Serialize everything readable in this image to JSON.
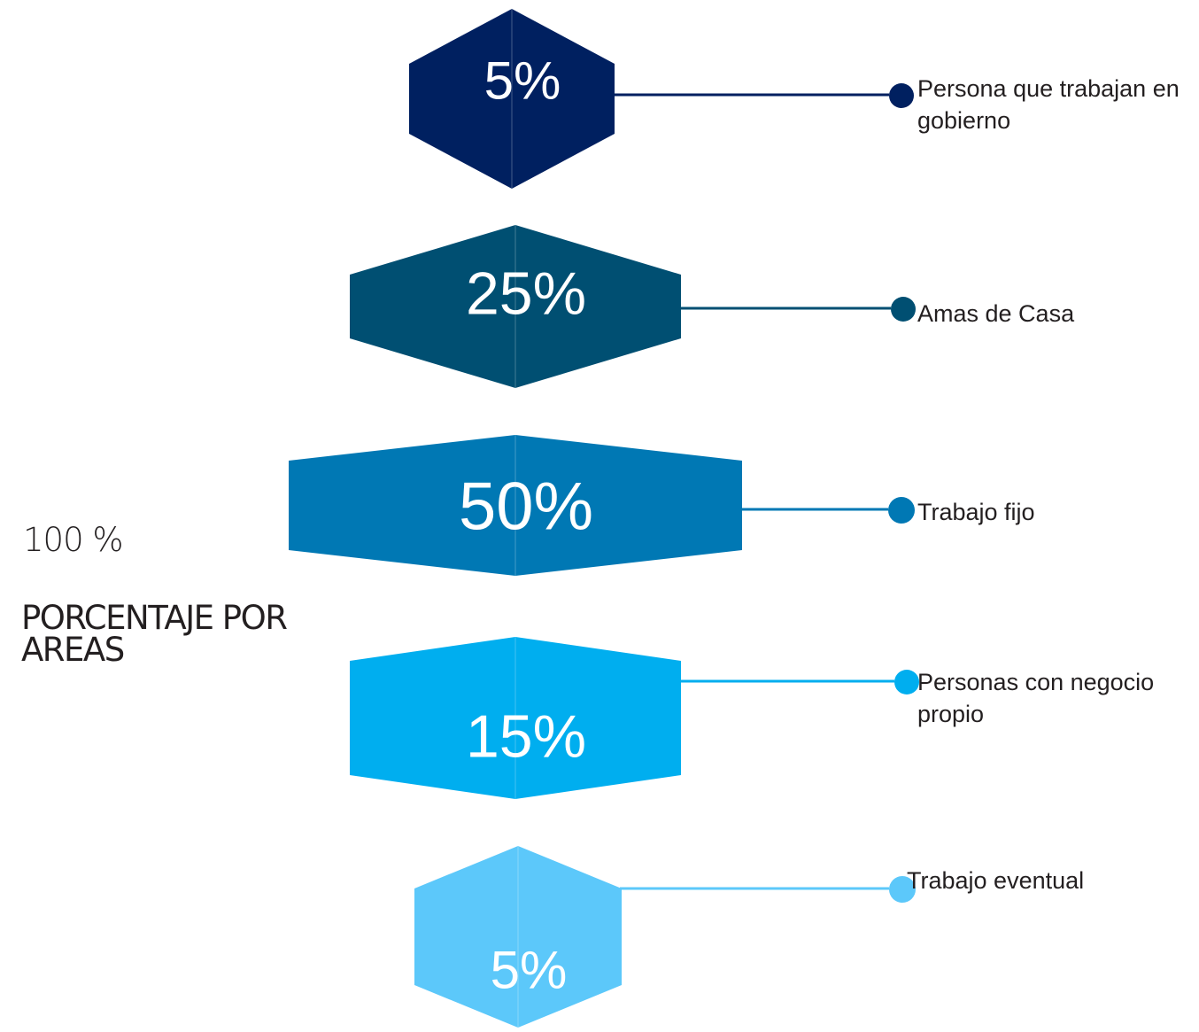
{
  "chart_data": {
    "type": "bar",
    "title": "PORCENTAJE POR AREAS",
    "total_label": "100 %",
    "categories": [
      "Persona que trabajan en gobierno",
      "Amas de Casa",
      "Trabajo fijo",
      "Personas con negocio propio",
      "Trabajo eventual"
    ],
    "values": [
      5,
      25,
      50,
      15,
      5
    ],
    "value_labels": [
      "5%",
      "25%",
      "50%",
      "15%",
      "5%"
    ],
    "colors": [
      "#002060",
      "#004f72",
      "#0078b4",
      "#00aeef",
      "#5cc8fa"
    ]
  }
}
